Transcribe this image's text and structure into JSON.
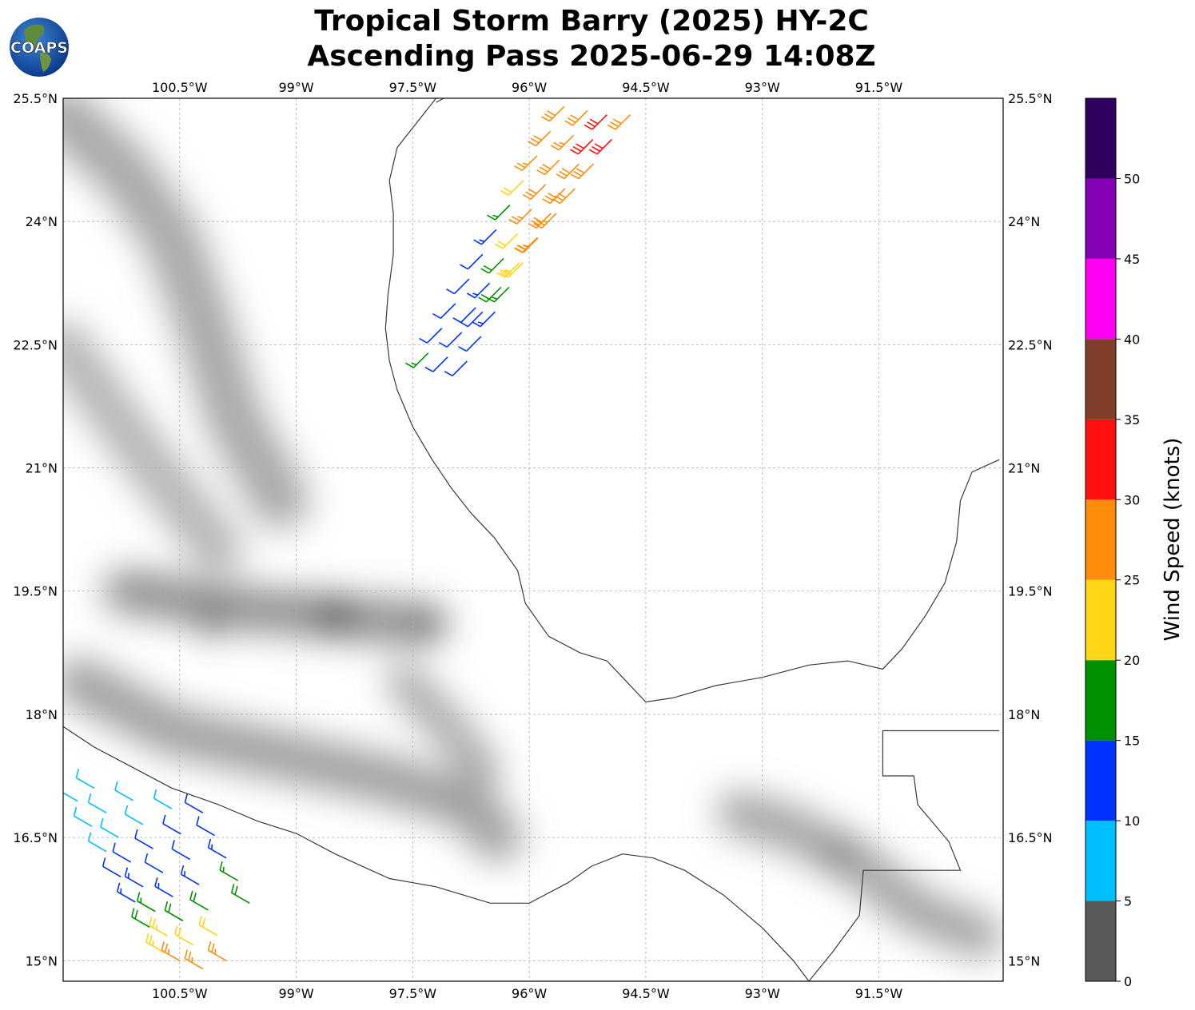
{
  "title": {
    "line1": "Tropical Storm Barry (2025) HY-2C",
    "line2": "Ascending Pass 2025-06-29 14:08Z"
  },
  "logo": {
    "text": "COAPS",
    "icon": "globe-logo-icon"
  },
  "map": {
    "lon_range": [
      -102.0,
      -89.9
    ],
    "lat_range": [
      14.75,
      25.5
    ],
    "lon_tick_values": [
      -100.5,
      -99,
      -97.5,
      -96,
      -94.5,
      -93,
      -91.5
    ],
    "lon_labels": [
      "100.5°W",
      "99°W",
      "97.5°W",
      "96°W",
      "94.5°W",
      "93°W",
      "91.5°W"
    ],
    "lat_tick_values": [
      25.5,
      24,
      22.5,
      21,
      19.5,
      18,
      16.5,
      15
    ],
    "lat_labels": [
      "25.5°N",
      "24°N",
      "22.5°N",
      "21°N",
      "19.5°N",
      "18°N",
      "16.5°N",
      "15°N"
    ],
    "gridlines": true,
    "background": "grayscale topography"
  },
  "colorbar": {
    "label": "Wind Speed (knots)",
    "ticks": [
      "0",
      "5",
      "10",
      "15",
      "20",
      "25",
      "30",
      "35",
      "40",
      "45",
      "50"
    ],
    "bins": [
      {
        "min": 0,
        "max": 5,
        "color": "#595959"
      },
      {
        "min": 5,
        "max": 10,
        "color": "#00bfff"
      },
      {
        "min": 10,
        "max": 15,
        "color": "#0033ff"
      },
      {
        "min": 15,
        "max": 20,
        "color": "#009100"
      },
      {
        "min": 20,
        "max": 25,
        "color": "#ffd514"
      },
      {
        "min": 25,
        "max": 30,
        "color": "#ff8c0a"
      },
      {
        "min": 30,
        "max": 35,
        "color": "#ff1010"
      },
      {
        "min": 35,
        "max": 40,
        "color": "#813e2a"
      },
      {
        "min": 40,
        "max": 45,
        "color": "#ff00f5"
      },
      {
        "min": 45,
        "max": 50,
        "color": "#8300b3"
      },
      {
        "min": 50,
        "max": 55,
        "color": "#30005e"
      }
    ]
  },
  "wind_swaths": [
    {
      "region": "gulf-of-mexico",
      "rows": [
        {
          "start": [
            -97.3,
            22.4
          ],
          "end": [
            -95.55,
            25.4
          ],
          "count": 11,
          "speeds": [
            17,
            12,
            12,
            12,
            12,
            13,
            17,
            22,
            27,
            28,
            28
          ]
        },
        {
          "start": [
            -97.05,
            22.35
          ],
          "end": [
            -95.25,
            25.35
          ],
          "count": 11,
          "speeds": [
            12,
            12,
            12,
            13,
            18,
            22,
            26,
            28,
            28,
            27,
            28
          ]
        },
        {
          "start": [
            -96.8,
            22.3
          ],
          "end": [
            -95.0,
            25.3
          ],
          "count": 11,
          "speeds": [
            12,
            12,
            13,
            17,
            22,
            26,
            28,
            28,
            29,
            32,
            31
          ]
        },
        {
          "start": [
            -96.6,
            22.9
          ],
          "end": [
            -94.7,
            25.3
          ],
          "count": 9,
          "speeds": [
            12,
            18,
            23,
            26,
            27,
            28,
            28,
            31,
            28
          ]
        }
      ],
      "direction_deg": 225
    },
    {
      "region": "pacific",
      "rows": [
        {
          "start": [
            -102.0,
            17.25
          ],
          "end": [
            -100.7,
            15.1
          ],
          "count": 8,
          "speeds": [
            8,
            8,
            8,
            8,
            12,
            13,
            18,
            23
          ]
        },
        {
          "start": [
            -101.6,
            17.1
          ],
          "end": [
            -100.5,
            15.0
          ],
          "count": 8,
          "speeds": [
            8,
            8,
            8,
            12,
            13,
            17,
            23,
            27
          ]
        },
        {
          "start": [
            -101.1,
            16.95
          ],
          "end": [
            -100.2,
            14.9
          ],
          "count": 8,
          "speeds": [
            8,
            8,
            12,
            12,
            13,
            18,
            22,
            27
          ]
        },
        {
          "start": [
            -100.6,
            16.85
          ],
          "end": [
            -99.9,
            15.0
          ],
          "count": 7,
          "speeds": [
            8,
            12,
            12,
            13,
            18,
            22,
            27
          ]
        },
        {
          "start": [
            -100.2,
            16.8
          ],
          "end": [
            -99.6,
            15.7
          ],
          "count": 5,
          "speeds": [
            12,
            12,
            13,
            17,
            18
          ]
        }
      ],
      "direction_deg": 300
    }
  ],
  "coastlines": {
    "gulf": [
      [
        -97.2,
        25.5
      ],
      [
        -97.45,
        25.2
      ],
      [
        -97.7,
        24.9
      ],
      [
        -97.8,
        24.5
      ],
      [
        -97.75,
        24.1
      ],
      [
        -97.75,
        23.6
      ],
      [
        -97.82,
        23.1
      ],
      [
        -97.85,
        22.7
      ],
      [
        -97.8,
        22.3
      ],
      [
        -97.7,
        21.95
      ],
      [
        -97.5,
        21.5
      ],
      [
        -97.25,
        21.1
      ],
      [
        -97.0,
        20.75
      ],
      [
        -96.75,
        20.45
      ],
      [
        -96.45,
        20.15
      ],
      [
        -96.15,
        19.75
      ],
      [
        -96.05,
        19.35
      ],
      [
        -95.75,
        18.95
      ],
      [
        -95.35,
        18.75
      ],
      [
        -95.0,
        18.65
      ],
      [
        -94.8,
        18.45
      ],
      [
        -94.5,
        18.15
      ],
      [
        -94.15,
        18.2
      ],
      [
        -93.6,
        18.35
      ],
      [
        -93.0,
        18.45
      ],
      [
        -92.4,
        18.6
      ],
      [
        -91.9,
        18.65
      ],
      [
        -91.45,
        18.55
      ],
      [
        -91.2,
        18.8
      ],
      [
        -90.9,
        19.2
      ],
      [
        -90.65,
        19.6
      ],
      [
        -90.5,
        20.1
      ],
      [
        -90.45,
        20.6
      ],
      [
        -90.3,
        20.95
      ],
      [
        -89.95,
        21.1
      ]
    ],
    "pacific": [
      [
        -102.0,
        17.85
      ],
      [
        -101.6,
        17.6
      ],
      [
        -101.1,
        17.35
      ],
      [
        -100.6,
        17.1
      ],
      [
        -100.0,
        16.9
      ],
      [
        -99.5,
        16.7
      ],
      [
        -99.0,
        16.55
      ],
      [
        -98.5,
        16.3
      ],
      [
        -97.8,
        16.0
      ],
      [
        -97.2,
        15.9
      ],
      [
        -96.5,
        15.7
      ],
      [
        -96.0,
        15.7
      ],
      [
        -95.5,
        15.95
      ],
      [
        -95.2,
        16.15
      ],
      [
        -94.8,
        16.3
      ],
      [
        -94.4,
        16.25
      ],
      [
        -94.0,
        16.1
      ],
      [
        -93.5,
        15.8
      ],
      [
        -93.0,
        15.4
      ],
      [
        -92.6,
        15.0
      ],
      [
        -92.4,
        14.75
      ]
    ],
    "border_guatemala": [
      [
        -92.4,
        14.75
      ],
      [
        -92.1,
        15.1
      ],
      [
        -91.75,
        15.55
      ],
      [
        -91.7,
        16.1
      ],
      [
        -90.45,
        16.1
      ],
      [
        -90.6,
        16.45
      ],
      [
        -91.0,
        16.9
      ],
      [
        -91.05,
        17.25
      ],
      [
        -91.45,
        17.25
      ],
      [
        -91.45,
        17.8
      ],
      [
        -89.95,
        17.8
      ]
    ],
    "border_usa": [
      [
        -97.1,
        25.5
      ],
      [
        -97.2,
        25.45
      ]
    ]
  }
}
